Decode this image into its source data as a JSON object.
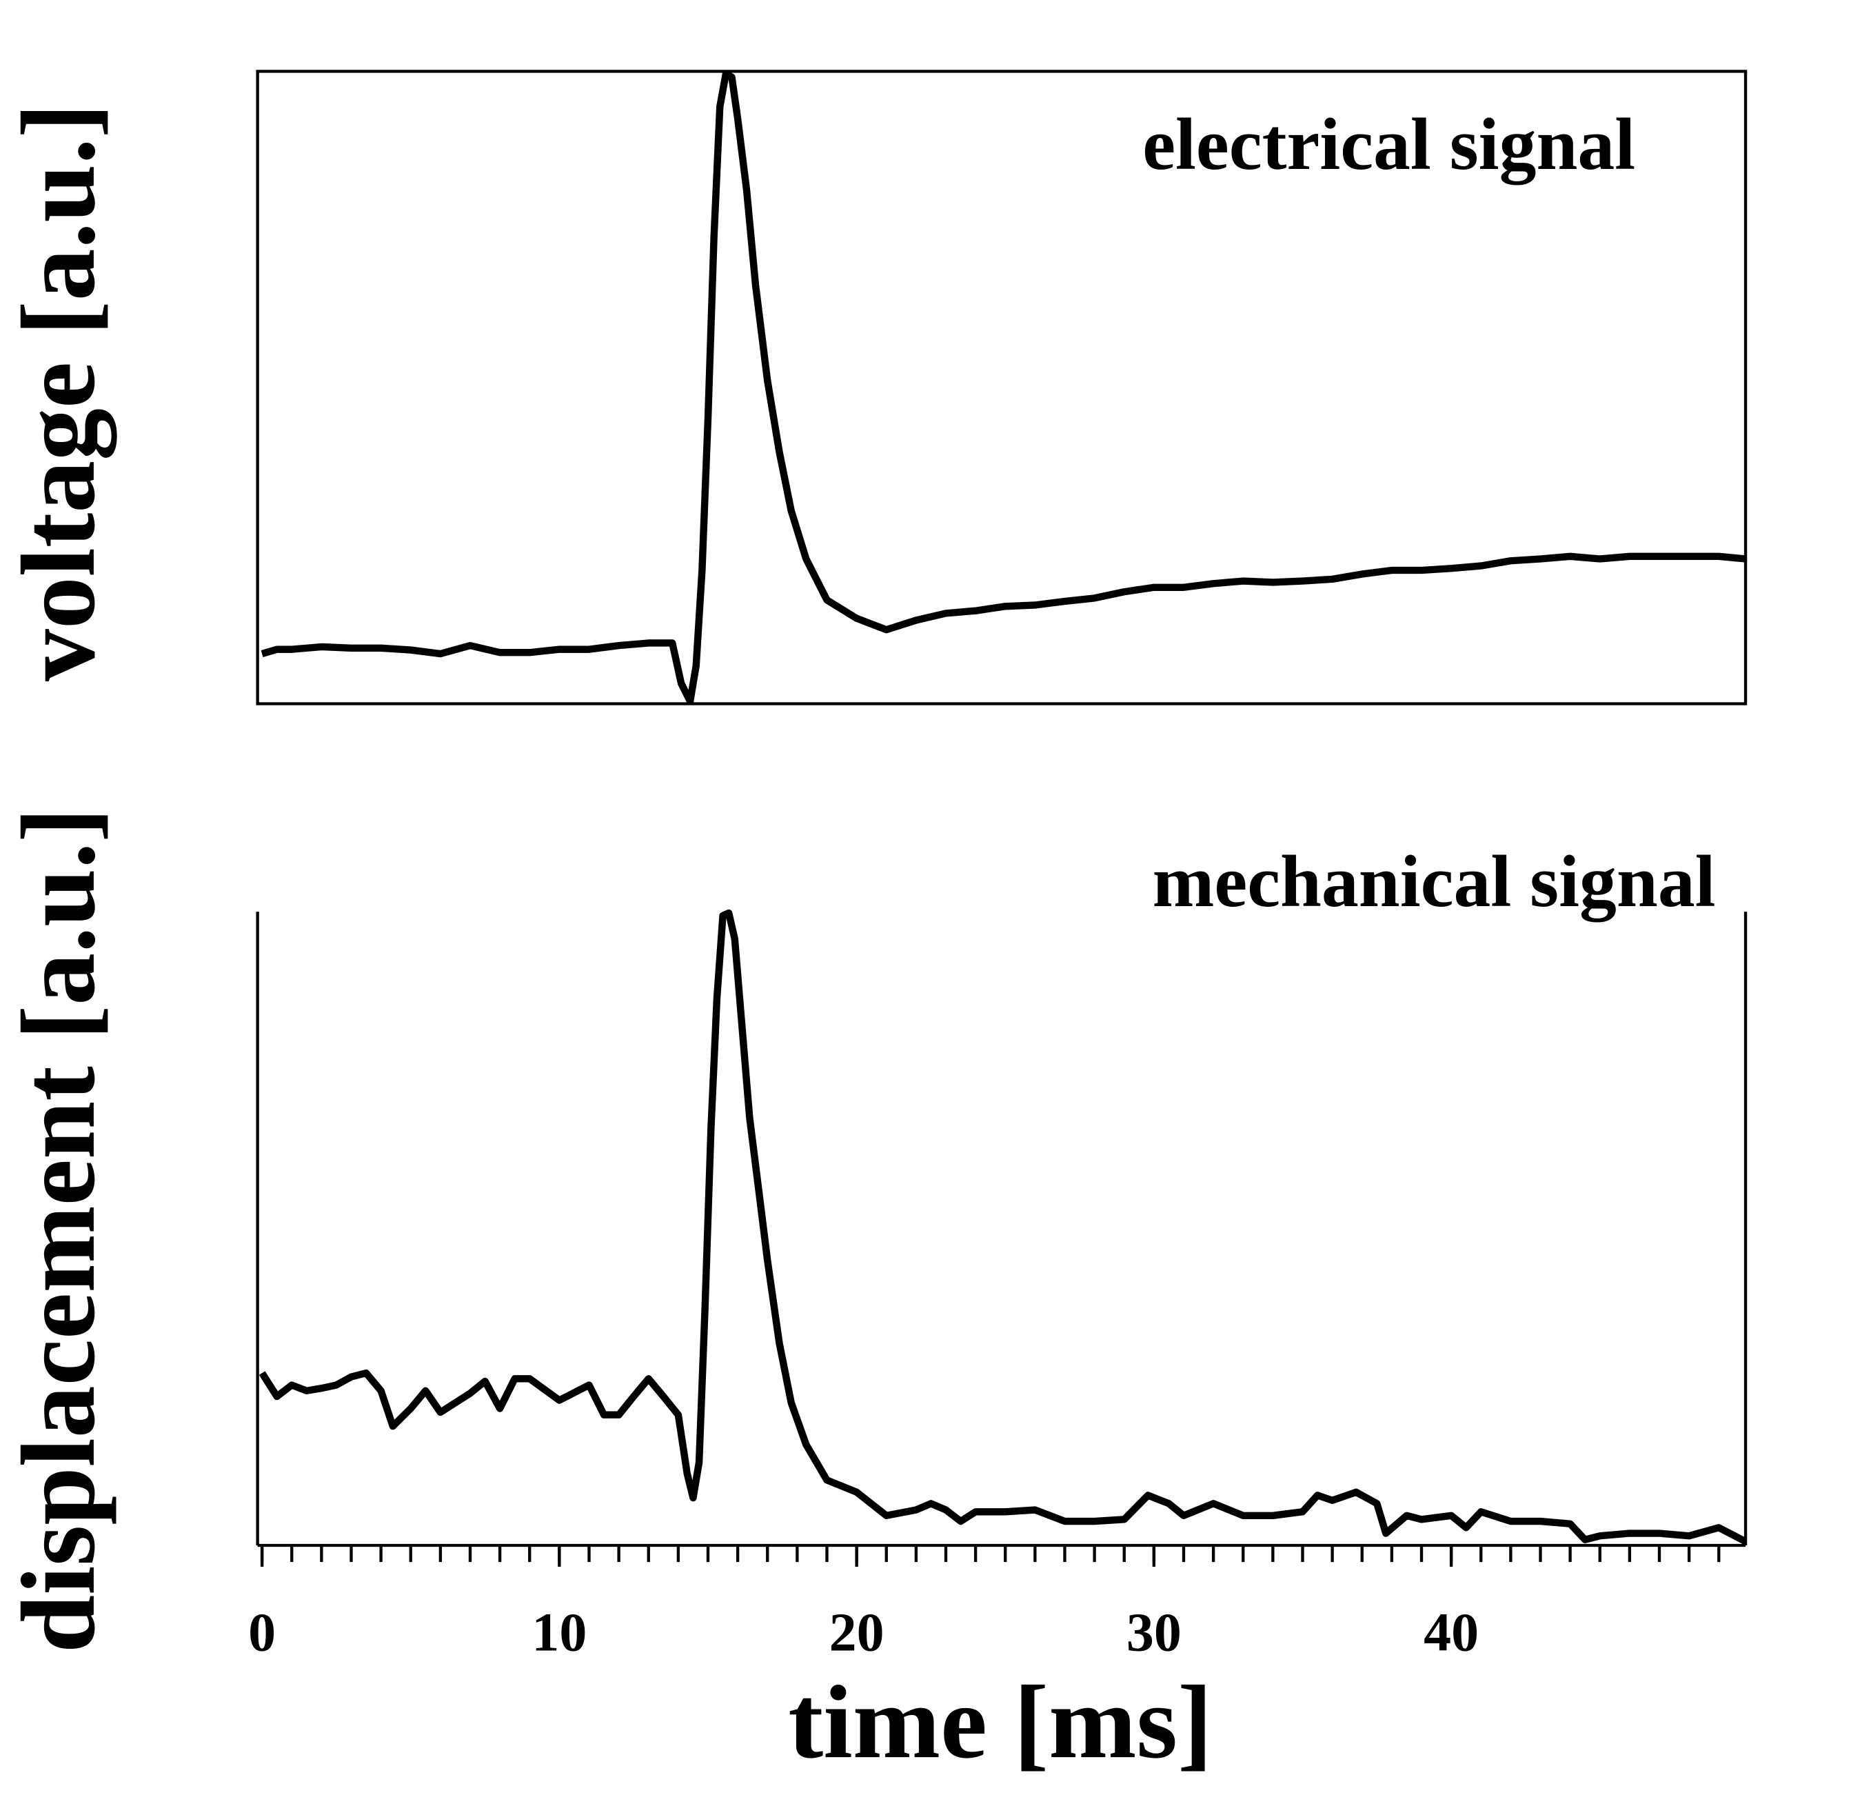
{
  "chart_data": [
    {
      "type": "line",
      "annotation": "electrical signal",
      "ylabel": "voltage [a.u.]",
      "color": "#000000",
      "frame": "box",
      "xlim": [
        -0.15,
        49.9
      ],
      "ylim": [
        0,
        1
      ],
      "x": [
        0,
        0.5,
        1,
        2,
        3,
        4,
        5,
        6,
        7,
        8,
        9,
        10,
        11,
        12,
        13,
        13.8,
        14.1,
        14.4,
        14.6,
        14.8,
        15.0,
        15.2,
        15.4,
        15.6,
        15.8,
        16.0,
        16.3,
        16.6,
        17.0,
        17.4,
        17.8,
        18.3,
        19,
        20,
        21,
        22,
        23,
        24,
        25,
        26,
        27,
        28,
        29,
        30,
        31,
        32,
        33,
        34,
        35,
        36,
        37,
        38,
        39,
        40,
        41,
        42,
        43,
        44,
        45,
        46,
        47,
        48,
        49,
        49.9
      ],
      "values": [
        0.079,
        0.086,
        0.086,
        0.09,
        0.088,
        0.088,
        0.085,
        0.079,
        0.092,
        0.081,
        0.081,
        0.086,
        0.086,
        0.092,
        0.096,
        0.096,
        0.032,
        0.004,
        0.06,
        0.211,
        0.451,
        0.737,
        0.944,
        0.996,
        0.991,
        0.925,
        0.812,
        0.662,
        0.511,
        0.398,
        0.305,
        0.229,
        0.164,
        0.135,
        0.117,
        0.132,
        0.143,
        0.147,
        0.154,
        0.156,
        0.162,
        0.167,
        0.177,
        0.184,
        0.184,
        0.19,
        0.194,
        0.192,
        0.194,
        0.197,
        0.205,
        0.211,
        0.211,
        0.214,
        0.218,
        0.226,
        0.229,
        0.233,
        0.229,
        0.233,
        0.233,
        0.233,
        0.233,
        0.229
      ]
    },
    {
      "type": "line",
      "annotation": "mechanical signal",
      "ylabel": "displacement [a.u.]",
      "xlabel": "time [ms]",
      "color": "#000000",
      "frame": "open",
      "xlim": [
        -0.15,
        49.9
      ],
      "ylim": [
        0,
        1
      ],
      "xticks": [
        0,
        10,
        20,
        30,
        40
      ],
      "xminorticks": [
        0,
        1,
        2,
        3,
        4,
        5,
        6,
        7,
        8,
        9,
        10,
        11,
        12,
        13,
        14,
        15,
        16,
        17,
        18,
        19,
        20,
        21,
        22,
        23,
        24,
        25,
        26,
        27,
        28,
        29,
        30,
        31,
        32,
        33,
        34,
        35,
        36,
        37,
        38,
        39,
        40,
        41,
        42,
        43,
        44,
        45,
        46,
        47,
        48,
        49
      ],
      "x": [
        0,
        0.5,
        1,
        1.5,
        2,
        2.5,
        3,
        3.5,
        4,
        4.4,
        5,
        5.5,
        6,
        7,
        7.5,
        8,
        8.5,
        9,
        10,
        11,
        11.5,
        12,
        12.5,
        13,
        13.5,
        14,
        14.3,
        14.5,
        14.7,
        14.9,
        15.1,
        15.3,
        15.5,
        15.7,
        15.9,
        16.1,
        16.4,
        16.7,
        17.0,
        17.4,
        17.8,
        18.3,
        19,
        20,
        21,
        22,
        22.5,
        23,
        23.5,
        24,
        25,
        26,
        27,
        28,
        29,
        29.8,
        30.5,
        31,
        32,
        33,
        34,
        35,
        35.5,
        36,
        36.8,
        37.5,
        37.8,
        38.5,
        39,
        40,
        40.5,
        41,
        42,
        43,
        44,
        44.5,
        45,
        46,
        47,
        48,
        49,
        49.9
      ],
      "values": [
        0.272,
        0.235,
        0.253,
        0.244,
        0.248,
        0.253,
        0.266,
        0.272,
        0.244,
        0.188,
        0.216,
        0.244,
        0.21,
        0.24,
        0.259,
        0.216,
        0.263,
        0.263,
        0.229,
        0.253,
        0.206,
        0.206,
        0.235,
        0.263,
        0.235,
        0.206,
        0.113,
        0.075,
        0.131,
        0.375,
        0.657,
        0.863,
        0.994,
        0.998,
        0.957,
        0.844,
        0.675,
        0.563,
        0.45,
        0.319,
        0.225,
        0.159,
        0.103,
        0.084,
        0.047,
        0.056,
        0.066,
        0.056,
        0.038,
        0.053,
        0.053,
        0.056,
        0.038,
        0.038,
        0.041,
        0.079,
        0.066,
        0.047,
        0.066,
        0.047,
        0.047,
        0.053,
        0.079,
        0.071,
        0.084,
        0.066,
        0.019,
        0.047,
        0.041,
        0.047,
        0.028,
        0.053,
        0.038,
        0.038,
        0.034,
        0.009,
        0.015,
        0.019,
        0.019,
        0.015,
        0.028,
        0.006
      ]
    }
  ]
}
